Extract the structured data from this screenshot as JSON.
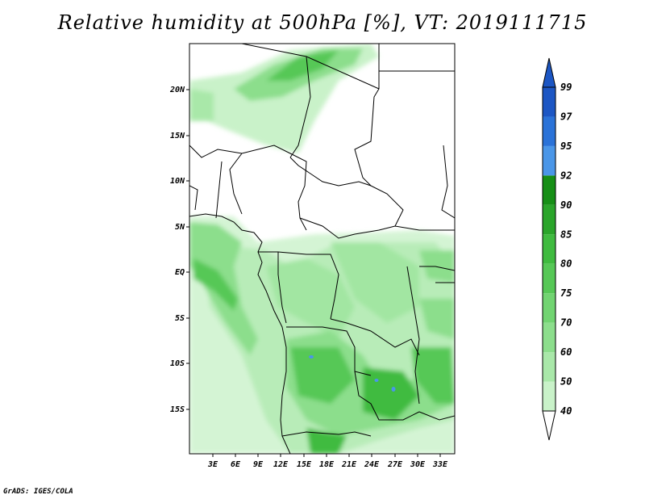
{
  "title": "Relative humidity at 500hPa [%], VT: 2019111715",
  "credit": "GrADS: IGES/COLA",
  "map": {
    "lat_labels": [
      "20N",
      "15N",
      "10N",
      "5N",
      "EQ",
      "5S",
      "10S",
      "15S"
    ],
    "lon_labels": [
      "3E",
      "6E",
      "9E",
      "12E",
      "15E",
      "18E",
      "21E",
      "24E",
      "27E",
      "30E",
      "33E"
    ]
  },
  "colorbar": {
    "levels": [
      "40",
      "50",
      "60",
      "70",
      "75",
      "80",
      "85",
      "90",
      "92",
      "95",
      "97",
      "99"
    ],
    "colors": [
      "#e6fae6",
      "#c9f2c9",
      "#a9e8a9",
      "#8cde8c",
      "#71d471",
      "#56c856",
      "#3fbb3f",
      "#2aa52a",
      "#168f16",
      "#4a96e8",
      "#2a72d8",
      "#1c56c4"
    ]
  }
}
